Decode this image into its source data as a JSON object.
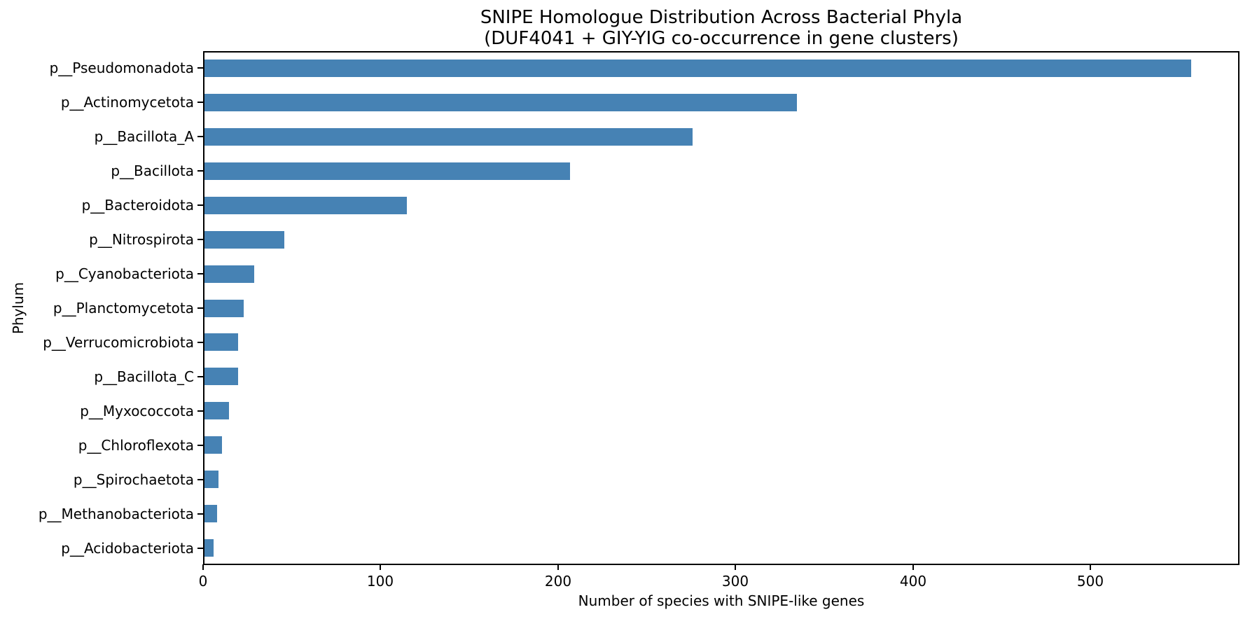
{
  "chart_data": {
    "type": "bar",
    "orientation": "horizontal",
    "title": "SNIPE Homologue Distribution Across Bacterial Phyla\n(DUF4041 + GIY-YIG co-occurrence in gene clusters)",
    "xlabel": "Number of species with SNIPE-like genes",
    "ylabel": "Phylum",
    "categories": [
      "p__Pseudomonadota",
      "p__Actinomycetota",
      "p__Bacillota_A",
      "p__Bacillota",
      "p__Bacteroidota",
      "p__Nitrospirota",
      "p__Cyanobacteriota",
      "p__Planctomycetota",
      "p__Verrucomicrobiota",
      "p__Bacillota_C",
      "p__Myxococcota",
      "p__Chloroflexota",
      "p__Spirochaetota",
      "p__Methanobacteriota",
      "p__Acidobacteriota"
    ],
    "values": [
      556,
      334,
      275,
      206,
      114,
      45,
      28,
      22,
      19,
      19,
      14,
      10,
      8,
      7,
      5
    ],
    "xticks": [
      0,
      100,
      200,
      300,
      400,
      500
    ],
    "xlim": [
      0,
      584
    ],
    "bar_color": "#4682B4",
    "axis_color": "#000000",
    "background_color": "#ffffff",
    "grid": false
  }
}
